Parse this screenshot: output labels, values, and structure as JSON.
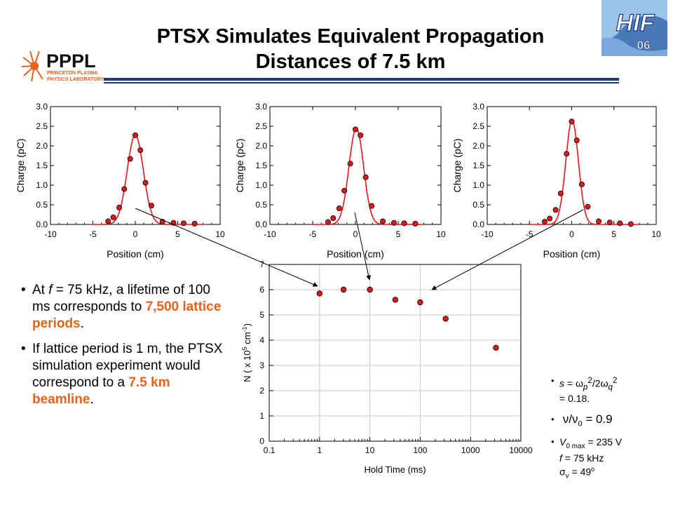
{
  "page": {
    "title_line1": "PTSX Simulates Equivalent Propagation",
    "title_line2": "Distances of 7.5 km"
  },
  "logos": {
    "pppl_main": "PPPL",
    "pppl_sub1": "PRINCETON PLASMA",
    "pppl_sub2": "PHYSICS LABORATORY",
    "hif_main": "HIF",
    "hif_sub": "06"
  },
  "left_bullets": {
    "b1_p1": "At ",
    "b1_f": "f",
    "b1_p2": " = 75 kHz, a lifetime of 100 ms corresponds to ",
    "b1_hl": "7,500 lattice periods",
    "b1_end": ".",
    "b2_p1": "If lattice period is 1 m, the PTSX simulation experiment would correspond to a ",
    "b2_hl1": "7.5 km",
    "b2_hl2": "beamline",
    "b2_end": "."
  },
  "right_bullets": {
    "r1_s": "s",
    "r1_eq": " = ",
    "r1_omega": "ω",
    "r1_p": "p",
    "r1_sq": "2",
    "r1_slash": "/2",
    "r1_q": "q",
    "r1_val": "= 0.18.",
    "r2_nu": "ν",
    "r2_slash": "/",
    "r2_zero": "0",
    "r2_val": " = 0.9",
    "r3_V": "V",
    "r3_sub": "0 max",
    "r3_val": " = 235 V",
    "r3_f": "f",
    "r3_fval": " = 75 kHz",
    "r3_sigma": "σ",
    "r3_v": "v",
    "r3_sval": " = 49",
    "r3_deg": "o"
  },
  "colors": {
    "fit_line": "#e8161a",
    "marker_fill": "#d81a1a",
    "highlight": "#e8621a",
    "rule": "#1a3a86"
  },
  "chart_data": [
    {
      "type": "scatter",
      "id": "profile-1",
      "xlabel": "Position (cm)",
      "ylabel": "Charge (pC)",
      "xlim": [
        -10,
        10
      ],
      "ylim": [
        0,
        3
      ],
      "xticks": [
        -10,
        -5,
        0,
        5,
        10
      ],
      "yticks": [
        "0.0",
        "0.5",
        "1.0",
        "1.5",
        "2.0",
        "2.5",
        "3.0"
      ],
      "points": [
        [
          -3.2,
          0.08
        ],
        [
          -2.6,
          0.18
        ],
        [
          -1.9,
          0.43
        ],
        [
          -1.3,
          0.9
        ],
        [
          -0.6,
          1.67
        ],
        [
          0.0,
          2.27
        ],
        [
          0.6,
          1.89
        ],
        [
          1.2,
          1.06
        ],
        [
          1.9,
          0.48
        ],
        [
          3.2,
          0.07
        ],
        [
          4.5,
          0.04
        ],
        [
          5.7,
          0.03
        ],
        [
          7.0,
          0.02
        ]
      ],
      "fit": {
        "amplitude": 2.28,
        "center": 0.0,
        "sigma": 0.95
      }
    },
    {
      "type": "scatter",
      "id": "profile-2",
      "xlabel": "Position (cm)",
      "ylabel": "Charge (pC)",
      "xlim": [
        -10,
        10
      ],
      "ylim": [
        0,
        3
      ],
      "xticks": [
        -10,
        -5,
        0,
        5,
        10
      ],
      "yticks": [
        "0.0",
        "0.5",
        "1.0",
        "1.5",
        "2.0",
        "2.5",
        "3.0"
      ],
      "points": [
        [
          -3.2,
          0.06
        ],
        [
          -2.6,
          0.16
        ],
        [
          -1.9,
          0.41
        ],
        [
          -1.3,
          0.86
        ],
        [
          -0.6,
          1.55
        ],
        [
          0.0,
          2.42
        ],
        [
          0.6,
          2.27
        ],
        [
          1.2,
          1.2
        ],
        [
          1.9,
          0.47
        ],
        [
          3.2,
          0.08
        ],
        [
          4.5,
          0.04
        ],
        [
          5.7,
          0.03
        ],
        [
          7.0,
          0.02
        ]
      ],
      "fit": {
        "amplitude": 2.45,
        "center": 0.1,
        "sigma": 0.85
      }
    },
    {
      "type": "scatter",
      "id": "profile-3",
      "xlabel": "Position (cm)",
      "ylabel": "Charge (pC)",
      "xlim": [
        -10,
        10
      ],
      "ylim": [
        0,
        3
      ],
      "xticks": [
        -10,
        -5,
        0,
        5,
        10
      ],
      "yticks": [
        "0.0",
        "0.5",
        "1.0",
        "1.5",
        "2.0",
        "2.5",
        "3.0"
      ],
      "points": [
        [
          -3.2,
          0.07
        ],
        [
          -2.6,
          0.15
        ],
        [
          -1.9,
          0.37
        ],
        [
          -1.3,
          0.79
        ],
        [
          -0.6,
          1.8
        ],
        [
          0.0,
          2.62
        ],
        [
          0.6,
          2.14
        ],
        [
          1.2,
          1.02
        ],
        [
          1.9,
          0.45
        ],
        [
          3.2,
          0.08
        ],
        [
          4.5,
          0.05
        ],
        [
          5.7,
          0.03
        ],
        [
          7.0,
          0.01
        ]
      ],
      "fit": {
        "amplitude": 2.65,
        "center": 0.05,
        "sigma": 0.75
      }
    },
    {
      "type": "scatter",
      "id": "lifetime",
      "xlabel": "Hold Time (ms)",
      "ylabel_part1": "N ( x 10",
      "ylabel_exp5": "5",
      "ylabel_part2": " cm",
      "ylabel_exp_neg1": "-1",
      "ylabel_part3": ")",
      "x_scale": "log",
      "xlim": [
        0.1,
        10000
      ],
      "ylim": [
        0,
        7
      ],
      "xticks": [
        0.1,
        1,
        10,
        100,
        1000,
        10000
      ],
      "xtick_labels": [
        "0.1",
        "1",
        "10",
        "100",
        "1000",
        "10000"
      ],
      "yticks": [
        "0",
        "1",
        "2",
        "3",
        "4",
        "5",
        "6",
        "7"
      ],
      "grid": true,
      "x": [
        1,
        3,
        10,
        32,
        100,
        320,
        3200
      ],
      "y": [
        5.85,
        6.0,
        6.0,
        5.6,
        5.5,
        4.85,
        3.7
      ]
    }
  ]
}
